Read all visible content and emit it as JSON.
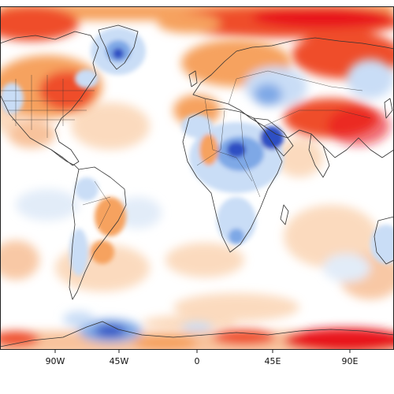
{
  "map": {
    "x_ticks": [
      "90W",
      "45W",
      "0",
      "45E",
      "90E"
    ],
    "colors": {
      "deep_red": "#e8141e",
      "red": "#ef4e2c",
      "orange": "#f6a25e",
      "light_orange": "#fbd7b8",
      "white": "#ffffff",
      "light_blue": "#c9ddf6",
      "blue": "#7ea8e6",
      "deep_blue": "#2f4fc3"
    }
  }
}
